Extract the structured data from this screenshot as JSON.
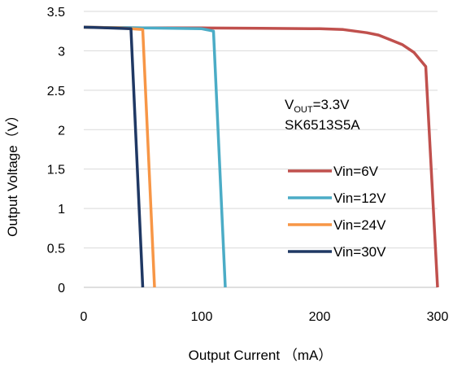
{
  "chart_data": {
    "type": "line",
    "title": "",
    "xlabel": "Output Current （mA）",
    "ylabel": "Output Voltage（V）",
    "xlim": [
      0,
      300
    ],
    "ylim": [
      0,
      3.5
    ],
    "x_ticks": [
      "0",
      "100",
      "200",
      "300"
    ],
    "y_ticks": [
      "0",
      "0.5",
      "1",
      "1.5",
      "2",
      "2.5",
      "3",
      "3.5"
    ],
    "grid": "horizontal",
    "legend_position": "right-center",
    "annotations": {
      "vout_prefix": "V",
      "vout_subscript": "OUT",
      "vout_value": "=3.3V",
      "part_number": "SK6513S5A"
    },
    "series": [
      {
        "name": "Vin=6V",
        "color": "#c0504d",
        "x": [
          0,
          50,
          100,
          150,
          200,
          220,
          240,
          250,
          260,
          270,
          280,
          290,
          300
        ],
        "y": [
          3.3,
          3.29,
          3.29,
          3.285,
          3.28,
          3.27,
          3.23,
          3.2,
          3.14,
          3.08,
          2.98,
          2.8,
          0
        ]
      },
      {
        "name": "Vin=12V",
        "color": "#4bacc6",
        "x": [
          0,
          50,
          100,
          110,
          120
        ],
        "y": [
          3.3,
          3.29,
          3.28,
          3.25,
          0
        ]
      },
      {
        "name": "Vin=24V",
        "color": "#f79646",
        "x": [
          0,
          30,
          50,
          60
        ],
        "y": [
          3.3,
          3.29,
          3.27,
          0
        ]
      },
      {
        "name": "Vin=30V",
        "color": "#1f3864",
        "x": [
          0,
          20,
          40,
          50
        ],
        "y": [
          3.3,
          3.29,
          3.28,
          0
        ]
      }
    ]
  }
}
